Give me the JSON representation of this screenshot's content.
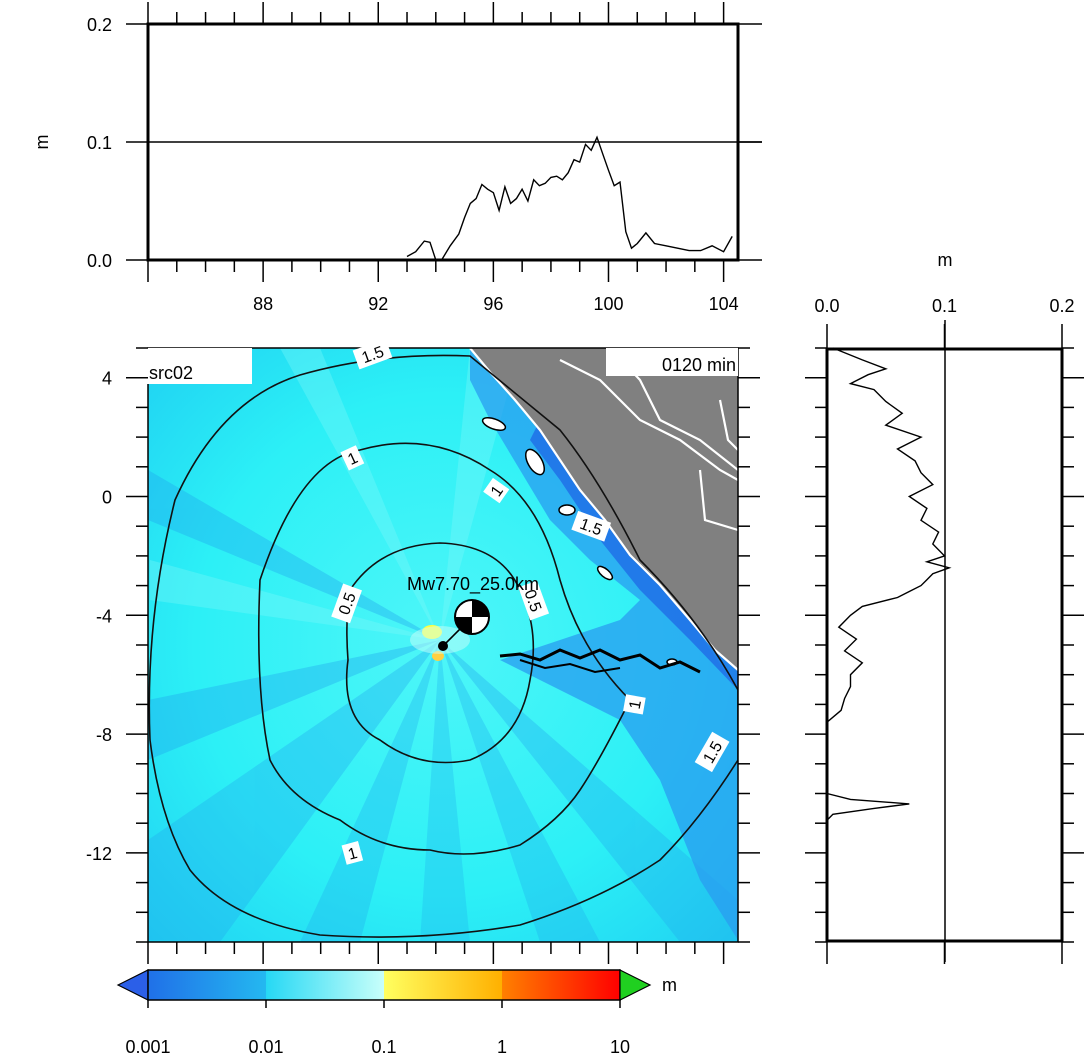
{
  "map": {
    "title": "src02",
    "time_label": "0120 min",
    "source_label": "Mw7.70_25.0km",
    "lon_range": [
      84.0,
      104.5
    ],
    "lat_range": [
      -15.0,
      5.0
    ],
    "lon_ticks": [
      88,
      92,
      96,
      100,
      104
    ],
    "lat_ticks": [
      4,
      0,
      -4,
      -8,
      -12
    ],
    "epicenter": {
      "lon": 94.3,
      "lat": -4.8
    },
    "contour_labels": [
      {
        "text": "1.5",
        "lon": 91.8,
        "lat": 4.8,
        "rot": -20
      },
      {
        "text": "1",
        "lon": 91.1,
        "lat": 1.3,
        "rot": -25
      },
      {
        "text": "1",
        "lon": 96.1,
        "lat": 0.2,
        "rot": -55
      },
      {
        "text": "1.5",
        "lon": 99.4,
        "lat": -1.0,
        "rot": 20
      },
      {
        "text": "0.5",
        "lon": 90.9,
        "lat": -3.6,
        "rot": -70
      },
      {
        "text": "0.5",
        "lon": 97.4,
        "lat": -3.5,
        "rot": 70
      },
      {
        "text": "1",
        "lon": 100.9,
        "lat": -7.0,
        "rot": -80
      },
      {
        "text": "1.5",
        "lon": 103.6,
        "lat": -8.6,
        "rot": -60
      },
      {
        "text": "1",
        "lon": 91.1,
        "lat": -12.0,
        "rot": -15
      }
    ],
    "colors": {
      "ocean": "#2bf0f5",
      "land": "#808080",
      "deep": "#2a90f0"
    }
  },
  "top_profile": {
    "ylabel": "m",
    "y_ticks": [
      "0.2",
      "0.1",
      "0.0"
    ],
    "ylim": [
      0.0,
      0.2
    ],
    "x": [
      93.0,
      93.3,
      93.6,
      93.8,
      94.0,
      94.2,
      94.5,
      94.8,
      95.0,
      95.2,
      95.4,
      95.6,
      95.8,
      96.0,
      96.2,
      96.4,
      96.6,
      96.8,
      97.0,
      97.2,
      97.4,
      97.6,
      97.8,
      98.0,
      98.2,
      98.4,
      98.6,
      98.8,
      99.0,
      99.2,
      99.4,
      99.6,
      99.8,
      100.0,
      100.2,
      100.4,
      100.6,
      100.8,
      101.0,
      101.3,
      101.6,
      102.0,
      102.4,
      102.8,
      103.2,
      103.6,
      104.0,
      104.3
    ],
    "values": [
      0.003,
      0.007,
      0.016,
      0.015,
      0.0,
      0.0,
      0.012,
      0.022,
      0.036,
      0.048,
      0.052,
      0.064,
      0.06,
      0.057,
      0.042,
      0.062,
      0.048,
      0.052,
      0.06,
      0.05,
      0.068,
      0.063,
      0.065,
      0.07,
      0.071,
      0.068,
      0.074,
      0.085,
      0.083,
      0.098,
      0.093,
      0.104,
      0.09,
      0.076,
      0.063,
      0.066,
      0.024,
      0.01,
      0.014,
      0.023,
      0.014,
      0.012,
      0.01,
      0.008,
      0.008,
      0.012,
      0.007,
      0.02
    ]
  },
  "right_profile": {
    "xlabel": "m",
    "x_ticks": [
      "0.0",
      "0.1",
      "0.2"
    ],
    "xlim": [
      0.0,
      0.2
    ],
    "lat": [
      5.0,
      4.6,
      4.3,
      4.1,
      3.8,
      3.6,
      3.2,
      2.8,
      2.4,
      2.0,
      1.6,
      1.2,
      0.8,
      0.4,
      0.0,
      -0.4,
      -0.8,
      -1.2,
      -1.6,
      -2.0,
      -2.2,
      -2.4,
      -2.6,
      -2.8,
      -3.0,
      -3.2,
      -3.4,
      -3.7,
      -4.0,
      -4.4,
      -4.8,
      -5.2,
      -5.6,
      -6.0,
      -6.4,
      -6.8,
      -7.2,
      -7.6,
      -7.8,
      -8.0,
      -8.6,
      -9.2,
      -9.8,
      -10.0,
      -10.2,
      -10.35,
      -10.5,
      -10.7,
      -10.9
    ],
    "values": [
      0.005,
      0.03,
      0.05,
      0.035,
      0.02,
      0.04,
      0.05,
      0.064,
      0.05,
      0.08,
      0.06,
      0.075,
      0.08,
      0.09,
      0.07,
      0.085,
      0.08,
      0.095,
      0.09,
      0.1,
      0.085,
      0.104,
      0.09,
      0.085,
      0.08,
      0.07,
      0.06,
      0.03,
      0.02,
      0.01,
      0.025,
      0.015,
      0.03,
      0.02,
      0.02,
      0.015,
      0.012,
      0.0,
      0.0,
      0.0,
      0.0,
      0.0,
      0.0,
      0.0,
      0.02,
      0.07,
      0.04,
      0.005,
      0.0
    ]
  },
  "colorbar": {
    "unit": "m",
    "tick_labels": [
      "0.001",
      "0.01",
      "0.1",
      "1",
      "10"
    ],
    "colors": [
      "#1f7be8",
      "#25c8f2",
      "#2bf0f5",
      "#fff050",
      "#ffa010",
      "#ff3000",
      "#ff0000"
    ],
    "under_color": "#2b5fe8",
    "over_color": "#20d020"
  }
}
